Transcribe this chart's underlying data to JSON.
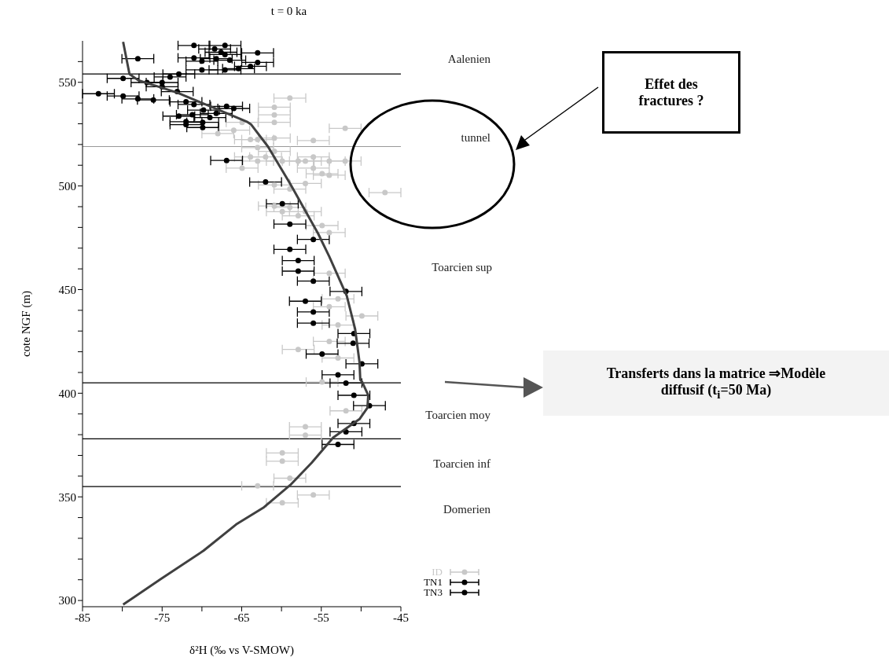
{
  "chart_data": {
    "type": "scatter",
    "title": "t = 0 ka",
    "xlabel": "δ²H (‰ vs V-SMOW)",
    "ylabel": "cote NGF (m)",
    "xlim": [
      -85,
      -45
    ],
    "xticks": [
      -85,
      {
        "value": -80,
        "label": null
      },
      -75,
      {
        "value": -70,
        "label": null
      },
      -65,
      {
        "value": -60,
        "label": null
      },
      -55,
      {
        "value": -50,
        "label": null
      },
      -45
    ],
    "ylim": [
      297,
      570
    ],
    "yticks": [
      300,
      {
        "value": 310,
        "label": null
      },
      {
        "value": 320,
        "label": null
      },
      {
        "value": 330,
        "label": null
      },
      {
        "value": 340,
        "label": null
      },
      350,
      {
        "value": 360,
        "label": null
      },
      {
        "value": 370,
        "label": null
      },
      {
        "value": 380,
        "label": null
      },
      {
        "value": 390,
        "label": null
      },
      400,
      {
        "value": 410,
        "label": null
      },
      {
        "value": 420,
        "label": null
      },
      {
        "value": 430,
        "label": null
      },
      {
        "value": 440,
        "label": null
      },
      450,
      {
        "value": 460,
        "label": null
      },
      {
        "value": 470,
        "label": null
      },
      {
        "value": 480,
        "label": null
      },
      {
        "value": 490,
        "label": null
      },
      500,
      {
        "value": 510,
        "label": null
      },
      {
        "value": 520,
        "label": null
      },
      {
        "value": 530,
        "label": null
      },
      {
        "value": 540,
        "label": null
      },
      550,
      {
        "value": 560,
        "label": null
      }
    ],
    "grid": false,
    "legend": "bottom right",
    "marker": "circle",
    "series": [
      {
        "name": "ID",
        "color": "#c8c8c8",
        "x": [
          -58.95,
          -60.9,
          -60.9,
          -60.9,
          -52.0,
          -64.95,
          -66.0,
          -68.0,
          -63.9,
          -63.0,
          -60.9,
          -56.0,
          -63.0,
          -60.9,
          -63.9,
          -63.0,
          -62.0,
          -59.9,
          -57.9,
          -57.0,
          -56.0,
          -54.0,
          -52.0,
          -64.95,
          -56.0,
          -54.9,
          -54.0,
          -60.9,
          -57.0,
          -58.95,
          -47.0,
          -60.9,
          -59.9,
          -58.95,
          -57.9,
          -57.0,
          -54.9,
          -54.0,
          -54.0,
          -52.9,
          -54.0,
          -49.9,
          -52.9,
          -54.0,
          -57.9,
          -52.9,
          -54.9,
          -51.9,
          -57.0,
          -57.0,
          -59.9,
          -59.9,
          -58.95,
          -63.0,
          -56.0,
          -59.9
        ],
        "values": [
          542.4,
          538,
          534.3,
          530.7,
          527.8,
          530.7,
          526.9,
          525.3,
          522.4,
          522.4,
          523.1,
          521.9,
          518.5,
          516.7,
          514,
          512,
          514,
          512,
          512,
          512,
          514,
          512,
          512,
          508.6,
          508.6,
          505.9,
          505.2,
          500.5,
          501.2,
          498.5,
          496.8,
          490.3,
          487.6,
          489.7,
          485.6,
          487.6,
          480.9,
          477.5,
          457.9,
          445.5,
          441.7,
          437.3,
          432.9,
          425,
          421.1,
          417,
          405.4,
          391.5,
          383.8,
          379.8,
          371.2,
          367.2,
          359,
          355.3,
          350.9,
          347.1
        ],
        "xerrors": [
          2,
          2,
          2,
          2,
          2,
          2,
          2,
          2,
          2,
          2,
          2,
          2,
          2,
          2,
          2,
          2,
          2,
          2,
          2,
          2,
          2,
          2,
          2,
          2,
          2,
          2,
          2,
          2,
          2,
          2,
          2,
          2,
          2,
          2,
          2,
          2,
          2,
          2,
          2,
          2,
          2,
          2,
          2,
          2,
          2,
          2,
          2,
          2,
          2,
          2,
          2,
          2,
          2,
          2,
          2,
          2
        ]
      },
      {
        "name": "TN1",
        "color": "#000000",
        "x": [
          -71.0,
          -71.0,
          -70.0,
          -70.0,
          -78.05,
          -63.0,
          -63.0,
          -63.9,
          -68.4,
          -67.6,
          -67.1,
          -67.1,
          -68.2,
          -66.5,
          -65.4,
          -67.1,
          -79.9,
          -83.0,
          -79.9,
          -78.05,
          -76.1,
          -76.9,
          -75.0,
          -74.0,
          -72.9,
          -75.0,
          -73.1,
          -72.0,
          -71.0,
          -69.8,
          -68.2,
          -66.9,
          -66.0,
          -72.9,
          -71.2,
          -69.0,
          -72.0,
          -69.9,
          -69.9,
          -72.0
        ],
        "values": [
          567.8,
          561.8,
          560.2,
          556,
          561.4,
          564.2,
          559.6,
          557.7,
          566.1,
          564.5,
          567.8,
          563.4,
          561.4,
          560.7,
          556.6,
          556,
          551.9,
          544.5,
          543.4,
          542,
          541.5,
          549.9,
          549.9,
          552.6,
          554,
          547.9,
          545.5,
          540.6,
          539.3,
          536.6,
          535,
          538.4,
          537.4,
          533.7,
          534.4,
          533,
          531,
          530.7,
          528.2,
          529.6
        ],
        "xerrors": [
          2,
          2,
          2,
          2,
          2,
          2,
          2,
          2,
          2,
          2,
          2,
          2,
          2,
          2,
          2,
          2,
          2,
          2,
          2,
          2,
          2,
          2,
          2,
          2,
          2,
          2,
          2,
          2,
          2,
          2,
          2,
          2,
          2,
          2,
          2,
          2,
          2,
          2,
          2,
          2
        ]
      },
      {
        "name": "TN3",
        "color": "#000000",
        "x": [
          -66.9,
          -62.0,
          -59.9,
          -58.95,
          -56.0,
          -58.95,
          -57.9,
          -57.9,
          -56.0,
          -51.9,
          -57.0,
          -56.0,
          -56.0,
          -50.9,
          -51.0,
          -54.9,
          -49.9,
          -52.9,
          -51.9,
          -50.9,
          -48.95,
          -50.9,
          -51.9,
          -52.9
        ],
        "values": [
          512.3,
          501.9,
          491.4,
          481.6,
          474.2,
          469.4,
          464,
          458.9,
          454.1,
          449.1,
          444.4,
          439.2,
          433.8,
          428.8,
          424.1,
          418.9,
          414.2,
          408.9,
          404.9,
          399,
          394,
          385.4,
          381.4,
          375.3
        ],
        "xerrors": [
          2,
          2,
          2,
          2,
          2,
          2,
          2,
          2,
          2,
          2,
          2,
          2,
          2,
          2,
          2,
          2,
          2,
          2,
          2,
          2,
          2,
          2,
          2,
          2
        ]
      },
      {
        "type": "line",
        "color": "#404040",
        "marker": "none",
        "x": [
          -79.9,
          -79.1,
          -78.0,
          -73.1,
          -68.7,
          -64.35,
          -63.8,
          -61.7,
          -58.9,
          -55.4,
          -54.0,
          -51.8,
          -50.75,
          -50.2,
          -50.1,
          -49.9,
          -49.1,
          -49.2,
          -50.2,
          -53.5,
          -56.2,
          -58.9,
          -62.2,
          -65.7,
          -69.8,
          -75.2,
          -79.9
        ],
        "values": [
          569.5,
          554,
          551,
          545,
          538,
          531,
          529.6,
          519,
          501,
          477,
          466,
          447,
          431,
          415,
          406.4,
          405.7,
          399,
          393,
          387.5,
          378.6,
          366.5,
          355.7,
          345,
          336.7,
          324,
          310.3,
          298
        ]
      }
    ],
    "ref_lines": [
      {
        "axis": "y",
        "value": 554,
        "color": "#000000"
      },
      {
        "axis": "y",
        "value": 519,
        "color": "#999999"
      },
      {
        "axis": "y",
        "value": 405,
        "color": "#000000"
      },
      {
        "axis": "y",
        "value": 378,
        "color": "#000000"
      },
      {
        "axis": "y",
        "value": 355,
        "color": "#000000"
      }
    ],
    "annotations": [
      "Aalenien",
      "tunnel",
      "Toarcien sup",
      "Toarcien moy",
      "Toarcien inf",
      "Domerien",
      "Effet des fractures ?",
      "Transferts dans la matrice ⇒Modèle diffusif (t$_{i}$=50 Ma)"
    ]
  }
}
